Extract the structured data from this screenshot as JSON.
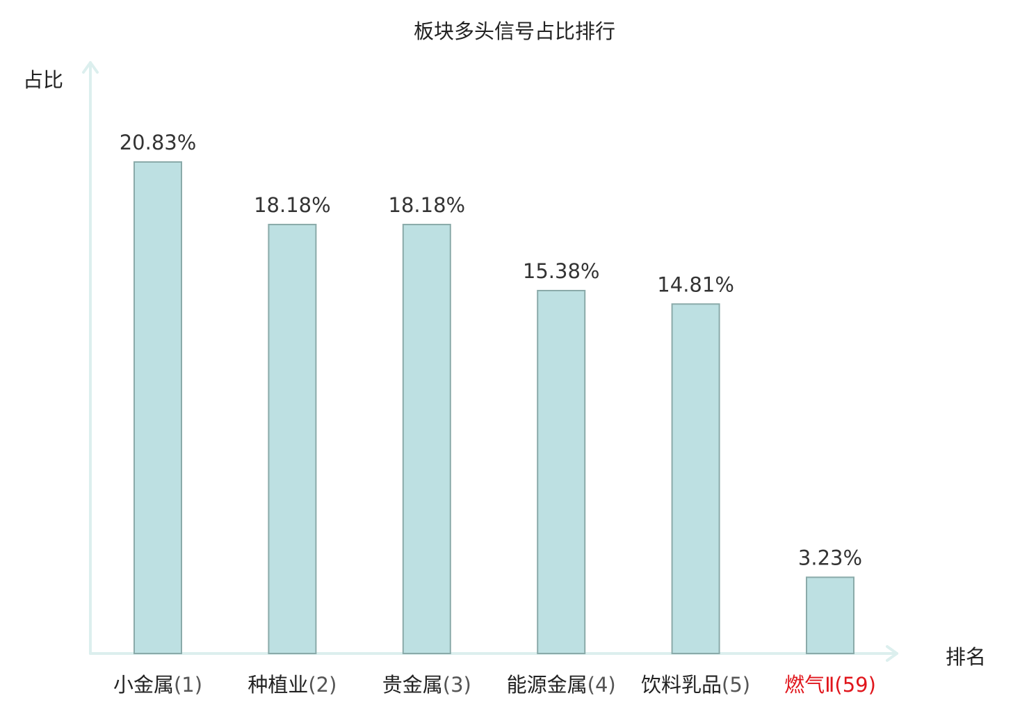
{
  "chart_data": {
    "type": "bar",
    "title": "板块多头信号占比排行",
    "ylabel": "占比",
    "xlabel": "排名",
    "categories": [
      "小金属",
      "种植业",
      "贵金属",
      "能源金属",
      "饮料乳品",
      "燃气Ⅱ"
    ],
    "ranks": [
      "(1)",
      "(2)",
      "(3)",
      "(4)",
      "(5)",
      "(59)"
    ],
    "values": [
      20.83,
      18.18,
      18.18,
      15.38,
      14.81,
      3.23
    ],
    "value_labels": [
      "20.83%",
      "18.18%",
      "18.18%",
      "15.38%",
      "14.81%",
      "3.23%"
    ],
    "highlight_index": 5,
    "ylim": [
      0,
      23
    ],
    "grid": false,
    "colors": {
      "bar_fill": "#bde0e2",
      "bar_stroke": "#8aaaa9",
      "axis": "#dcefee",
      "highlight_text": "#e0161c",
      "value_label": "#333333"
    }
  }
}
